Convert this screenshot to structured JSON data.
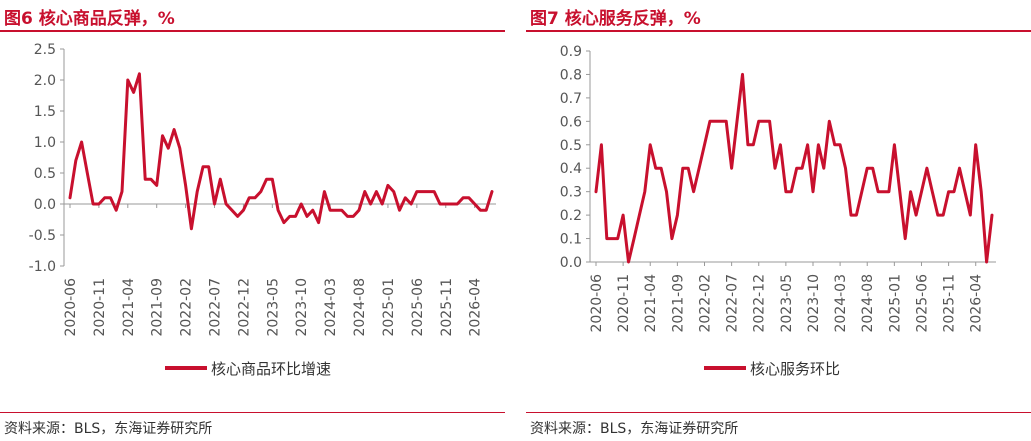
{
  "left": {
    "title": "图6  核心商品反弹，%",
    "source": "资料来源：BLS，东海证券研究所"
  },
  "right": {
    "title": "图7  核心服务反弹，%",
    "source": "资料来源：BLS，东海证券研究所"
  },
  "chart_data": [
    {
      "type": "line",
      "title": "",
      "xlabel": "",
      "ylabel": "",
      "ylim": [
        -1.0,
        2.5
      ],
      "yticks": [
        "2.5",
        "2.0",
        "1.5",
        "1.0",
        "0.5",
        "0.0",
        "-0.5",
        "-1.0"
      ],
      "ytick_values": [
        2.5,
        2.0,
        1.5,
        1.0,
        0.5,
        0.0,
        -0.5,
        -1.0
      ],
      "xticks": [
        "2020-06",
        "2020-11",
        "2021-04",
        "2021-09",
        "2022-02",
        "2022-07",
        "2022-12",
        "2023-05",
        "2023-10",
        "2024-03",
        "2024-08",
        "2025-01",
        "2025-06",
        "2025-11",
        "2026-04"
      ],
      "grid": false,
      "legend": "bottom",
      "color": "#c8102e",
      "series": [
        {
          "name": "核心商品环比增速",
          "x": [
            "2020-06",
            "2020-07",
            "2020-08",
            "2020-09",
            "2020-10",
            "2020-11",
            "2020-12",
            "2021-01",
            "2021-02",
            "2021-03",
            "2021-04",
            "2021-05",
            "2021-06",
            "2021-07",
            "2021-08",
            "2021-09",
            "2021-10",
            "2021-11",
            "2021-12",
            "2022-01",
            "2022-02",
            "2022-03",
            "2022-04",
            "2022-05",
            "2022-06",
            "2022-07",
            "2022-08",
            "2022-09",
            "2022-10",
            "2022-11",
            "2022-12",
            "2023-01",
            "2023-02",
            "2023-03",
            "2023-04",
            "2023-05",
            "2023-06",
            "2023-07",
            "2023-08",
            "2023-09",
            "2023-10",
            "2023-11",
            "2023-12",
            "2024-01",
            "2024-02",
            "2024-03",
            "2024-04",
            "2024-05",
            "2024-06",
            "2024-07",
            "2024-08",
            "2024-09",
            "2024-10",
            "2024-11",
            "2024-12",
            "2025-01",
            "2025-02",
            "2025-03",
            "2025-04",
            "2025-05",
            "2025-06",
            "2025-07",
            "2025-08",
            "2025-09",
            "2025-10",
            "2025-11",
            "2025-12",
            "2026-01",
            "2026-02",
            "2026-03",
            "2026-04",
            "2026-05",
            "2026-06",
            "2026-07"
          ],
          "values": [
            0.1,
            0.7,
            1.0,
            0.5,
            0.0,
            0.0,
            0.1,
            0.1,
            -0.1,
            0.2,
            2.0,
            1.8,
            2.1,
            0.4,
            0.4,
            0.3,
            1.1,
            0.9,
            1.2,
            0.9,
            0.3,
            -0.4,
            0.2,
            0.6,
            0.6,
            0.0,
            0.4,
            0.0,
            -0.1,
            -0.2,
            -0.1,
            0.1,
            0.1,
            0.2,
            0.4,
            0.4,
            -0.1,
            -0.3,
            -0.2,
            -0.2,
            0.0,
            -0.2,
            -0.1,
            -0.3,
            0.2,
            -0.1,
            -0.1,
            -0.1,
            -0.2,
            -0.2,
            -0.1,
            0.2,
            0.0,
            0.2,
            0.0,
            0.3,
            0.2,
            -0.1,
            0.1,
            0.0,
            0.2,
            0.2,
            0.2,
            0.2,
            0.0,
            0.0,
            0.0,
            0.0,
            0.1,
            0.1,
            0.0,
            -0.1,
            -0.1,
            0.2
          ]
        }
      ]
    },
    {
      "type": "line",
      "title": "",
      "xlabel": "",
      "ylabel": "",
      "ylim": [
        0.0,
        0.9
      ],
      "yticks": [
        "0.9",
        "0.8",
        "0.7",
        "0.6",
        "0.5",
        "0.4",
        "0.3",
        "0.2",
        "0.1",
        "0.0"
      ],
      "ytick_values": [
        0.9,
        0.8,
        0.7,
        0.6,
        0.5,
        0.4,
        0.3,
        0.2,
        0.1,
        0.0
      ],
      "xticks": [
        "2020-06",
        "2020-11",
        "2021-04",
        "2021-09",
        "2022-02",
        "2022-07",
        "2022-12",
        "2023-05",
        "2023-10",
        "2024-03",
        "2024-08",
        "2025-01",
        "2025-06",
        "2025-11",
        "2026-04"
      ],
      "grid": false,
      "legend": "bottom",
      "color": "#c8102e",
      "series": [
        {
          "name": "核心服务环比",
          "x": [
            "2020-06",
            "2020-07",
            "2020-08",
            "2020-09",
            "2020-10",
            "2020-11",
            "2020-12",
            "2021-01",
            "2021-02",
            "2021-03",
            "2021-04",
            "2021-05",
            "2021-06",
            "2021-07",
            "2021-08",
            "2021-09",
            "2021-10",
            "2021-11",
            "2021-12",
            "2022-01",
            "2022-02",
            "2022-03",
            "2022-04",
            "2022-05",
            "2022-06",
            "2022-07",
            "2022-08",
            "2022-09",
            "2022-10",
            "2022-11",
            "2022-12",
            "2023-01",
            "2023-02",
            "2023-03",
            "2023-04",
            "2023-05",
            "2023-06",
            "2023-07",
            "2023-08",
            "2023-09",
            "2023-10",
            "2023-11",
            "2023-12",
            "2024-01",
            "2024-02",
            "2024-03",
            "2024-04",
            "2024-05",
            "2024-06",
            "2024-07",
            "2024-08",
            "2024-09",
            "2024-10",
            "2024-11",
            "2024-12",
            "2025-01",
            "2025-02",
            "2025-03",
            "2025-04",
            "2025-05",
            "2025-06",
            "2025-07",
            "2025-08",
            "2025-09",
            "2025-10",
            "2025-11",
            "2025-12",
            "2026-01",
            "2026-02",
            "2026-03",
            "2026-04",
            "2026-05",
            "2026-06",
            "2026-07"
          ],
          "values": [
            0.3,
            0.5,
            0.1,
            0.1,
            0.1,
            0.2,
            0.0,
            0.1,
            0.2,
            0.3,
            0.5,
            0.4,
            0.4,
            0.3,
            0.1,
            0.2,
            0.4,
            0.4,
            0.3,
            0.4,
            0.5,
            0.6,
            0.6,
            0.6,
            0.6,
            0.4,
            0.6,
            0.8,
            0.5,
            0.5,
            0.6,
            0.6,
            0.6,
            0.4,
            0.5,
            0.3,
            0.3,
            0.4,
            0.4,
            0.5,
            0.3,
            0.5,
            0.4,
            0.6,
            0.5,
            0.5,
            0.4,
            0.2,
            0.2,
            0.3,
            0.4,
            0.4,
            0.3,
            0.3,
            0.3,
            0.5,
            0.3,
            0.1,
            0.3,
            0.2,
            0.3,
            0.4,
            0.3,
            0.2,
            0.2,
            0.3,
            0.3,
            0.4,
            0.3,
            0.2,
            0.5,
            0.3,
            0.0,
            0.2
          ]
        }
      ]
    }
  ]
}
